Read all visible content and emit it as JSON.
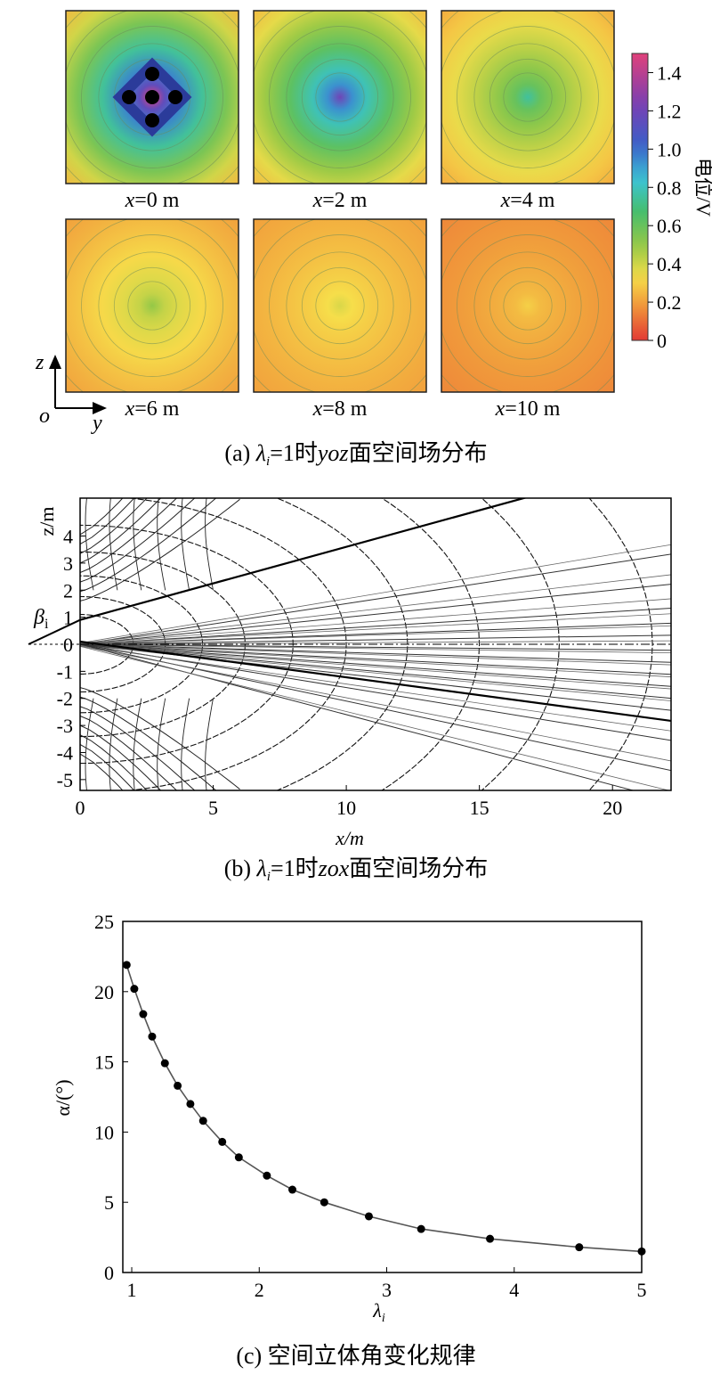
{
  "panel_a": {
    "caption_prefix": "(a) ",
    "caption_lambda": "λ",
    "caption_sub": "i",
    "caption_mid": "=1时",
    "caption_plane": "yoz",
    "caption_tail": "面空间场分布",
    "tile_labels": [
      {
        "var": "x",
        "val": "=0 m"
      },
      {
        "var": "x",
        "val": "=2 m"
      },
      {
        "var": "x",
        "val": "=4 m"
      },
      {
        "var": "x",
        "val": "=6 m"
      },
      {
        "var": "x",
        "val": "=8 m"
      },
      {
        "var": "x",
        "val": "=10 m"
      }
    ],
    "colorbar": {
      "label": "电位/V",
      "ticks": [
        "1.4",
        "1.2",
        "1.0",
        "0.8",
        "0.6",
        "0.4",
        "0.2",
        "0"
      ],
      "colors": [
        "#e43b35",
        "#f2a43a",
        "#f5e04a",
        "#8ec63f",
        "#3cbf70",
        "#3fc4d6",
        "#3a5fc8",
        "#7b3fb5",
        "#e0417a"
      ]
    },
    "axes": {
      "z": "z",
      "o": "o",
      "y": "y"
    }
  },
  "panel_b": {
    "caption_prefix": "(b) ",
    "caption_lambda": "λ",
    "caption_sub": "i",
    "caption_mid": "=1时",
    "caption_plane": "zox",
    "caption_tail": "面空间场分布",
    "ylabel": "z/m",
    "xlabel": "x/m",
    "beta": "β",
    "beta_sub": "i"
  },
  "chart_data": [
    {
      "type": "heatmap",
      "title": "(a) λi=1时yoz面空间场分布",
      "colorbar_label": "电位/V",
      "colorbar_range": [
        0,
        1.5
      ],
      "colorbar_ticks": [
        0,
        0.2,
        0.4,
        0.6,
        0.8,
        1.0,
        1.2,
        1.4
      ],
      "panels": [
        {
          "label": "x=0 m",
          "x": 0,
          "center_potential": 1.5,
          "edge_potential": 0.25
        },
        {
          "label": "x=2 m",
          "x": 2,
          "center_potential": 1.2,
          "edge_potential": 0.25
        },
        {
          "label": "x=4 m",
          "x": 4,
          "center_potential": 0.75,
          "edge_potential": 0.22
        },
        {
          "label": "x=6 m",
          "x": 6,
          "center_potential": 0.5,
          "edge_potential": 0.2
        },
        {
          "label": "x=8 m",
          "x": 8,
          "center_potential": 0.38,
          "edge_potential": 0.2
        },
        {
          "label": "x=10 m",
          "x": 10,
          "center_potential": 0.3,
          "edge_potential": 0.15
        }
      ]
    },
    {
      "type": "line",
      "title": "(b) λi=1时zox面空间场分布",
      "xlabel": "x/m",
      "ylabel": "z/m",
      "xlim": [
        0,
        22.2
      ],
      "ylim": [
        -5.4,
        5.4
      ],
      "xticks": [
        0,
        5,
        10,
        15,
        20
      ],
      "yticks": [
        -5,
        -4,
        -3,
        -2,
        -1,
        0,
        1,
        2,
        3,
        4
      ],
      "boundary_slopes": [
        0.27,
        -0.132
      ],
      "field_line_slopes": [
        0.15,
        0.1,
        0.06,
        0.035,
        0.015,
        -0.01,
        -0.03,
        -0.05,
        -0.07,
        -0.09,
        -0.11,
        -0.16,
        -0.21,
        -0.26
      ],
      "equipotential_radii": [
        2,
        3.2,
        4.6,
        6.2,
        8,
        10,
        12.3,
        15,
        18,
        21.5
      ]
    },
    {
      "type": "line",
      "title": "(c) 空间立体角变化规律",
      "xlabel": "λi",
      "ylabel": "α/(°)",
      "xlim": [
        0.93,
        5
      ],
      "ylim": [
        0,
        25
      ],
      "xticks": [
        1,
        2,
        3,
        4,
        5
      ],
      "yticks": [
        0,
        5,
        10,
        15,
        20,
        25
      ],
      "x": [
        0.96,
        1.02,
        1.09,
        1.16,
        1.26,
        1.36,
        1.46,
        1.56,
        1.71,
        1.84,
        2.06,
        2.26,
        2.51,
        2.86,
        3.27,
        3.81,
        4.51,
        5.0
      ],
      "y": [
        21.9,
        20.2,
        18.4,
        16.8,
        14.9,
        13.3,
        12.0,
        10.8,
        9.3,
        8.2,
        6.9,
        5.9,
        5.0,
        4.0,
        3.1,
        2.4,
        1.8,
        1.5
      ]
    }
  ],
  "panel_c": {
    "caption": "(c) 空间立体角变化规律",
    "ylabel": "α/(°)",
    "xlabel_lambda": "λ",
    "xlabel_sub": "i"
  }
}
